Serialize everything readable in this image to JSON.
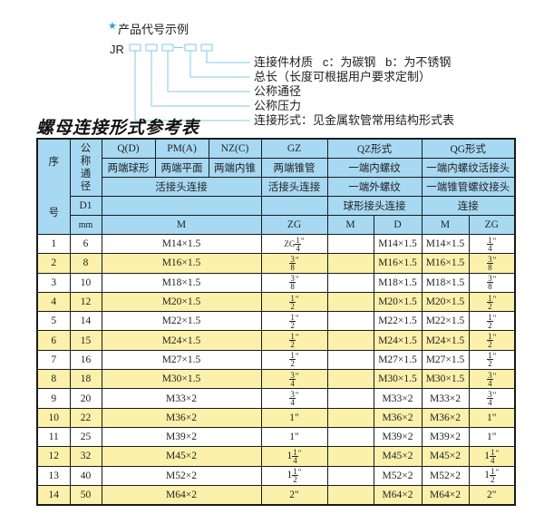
{
  "example": {
    "title": "产品代号示例",
    "code_prefix": "JR",
    "labels": [
      "连接件材质   c：为碳钢   b：为不锈钢",
      "总长（长度可根据用户要求定制）",
      "公称通径",
      "公称压力",
      "连接形式：见金属软管常用结构形式表"
    ],
    "accent_color": "#2a9fd6"
  },
  "table_title": "螺母连接形式参考表",
  "header": {
    "seq_top": "序",
    "seq_bottom": "号",
    "dn": "公称通径",
    "d1": "D1",
    "mm": "mm",
    "qd": "Q(D)",
    "pma": "PM(A)",
    "nzc": "NZ(C)",
    "gz": "GZ",
    "qz": "QZ形式",
    "qg": "QG形式",
    "qd_desc": "两端球形",
    "pma_desc": "两端平面",
    "nzc_desc": "两端内锥",
    "gz_desc": "两端锥管",
    "qz_desc1": "一端内螺纹",
    "qg_desc1": "一端内螺纹活接头",
    "conn1": "活接头连接",
    "gz_conn": "活接头连接",
    "qz_desc2": "一端外螺纹",
    "qg_desc2": "一端锥管螺纹接头",
    "qz_desc3": "球形接头连接",
    "qg_desc3": "连接",
    "m1": "M",
    "zg1": "ZG",
    "m2": "M",
    "d": "D",
    "m3": "M",
    "zg2": "ZG"
  },
  "rows": [
    {
      "no": "1",
      "dn": "6",
      "m": "M14×1.5",
      "zg": {
        "pre": "ZG",
        "whole": "",
        "num": "1",
        "den": "4",
        "mark": "\""
      },
      "qz_m": "",
      "qz_d": "M14×1.5",
      "qg_m": "M14×1.5",
      "qg_zg": {
        "pre": "",
        "whole": "",
        "num": "1",
        "den": "4",
        "mark": "\""
      }
    },
    {
      "no": "2",
      "dn": "8",
      "m": "M16×1.5",
      "zg": {
        "pre": "",
        "whole": "",
        "num": "3",
        "den": "8",
        "mark": "\""
      },
      "qz_m": "",
      "qz_d": "M16×1.5",
      "qg_m": "M16×1.5",
      "qg_zg": {
        "pre": "",
        "whole": "",
        "num": "3",
        "den": "8",
        "mark": "\""
      }
    },
    {
      "no": "3",
      "dn": "10",
      "m": "M18×1.5",
      "zg": {
        "pre": "",
        "whole": "",
        "num": "3",
        "den": "8",
        "mark": "\""
      },
      "qz_m": "",
      "qz_d": "M18×1.5",
      "qg_m": "M18×1.5",
      "qg_zg": {
        "pre": "",
        "whole": "",
        "num": "3",
        "den": "8",
        "mark": "\""
      }
    },
    {
      "no": "4",
      "dn": "12",
      "m": "M20×1.5",
      "zg": {
        "pre": "",
        "whole": "",
        "num": "1",
        "den": "2",
        "mark": "\""
      },
      "qz_m": "",
      "qz_d": "M20×1.5",
      "qg_m": "M20×1.5",
      "qg_zg": {
        "pre": "",
        "whole": "",
        "num": "1",
        "den": "2",
        "mark": "\""
      }
    },
    {
      "no": "5",
      "dn": "14",
      "m": "M22×1.5",
      "zg": {
        "pre": "",
        "whole": "",
        "num": "1",
        "den": "2",
        "mark": "\""
      },
      "qz_m": "",
      "qz_d": "M22×1.5",
      "qg_m": "M22×1.5",
      "qg_zg": {
        "pre": "",
        "whole": "",
        "num": "1",
        "den": "2",
        "mark": "\""
      }
    },
    {
      "no": "6",
      "dn": "15",
      "m": "M24×1.5",
      "zg": {
        "pre": "",
        "whole": "",
        "num": "1",
        "den": "2",
        "mark": "\""
      },
      "qz_m": "",
      "qz_d": "M24×1.5",
      "qg_m": "M24×1.5",
      "qg_zg": {
        "pre": "",
        "whole": "",
        "num": "1",
        "den": "2",
        "mark": "\""
      }
    },
    {
      "no": "7",
      "dn": "16",
      "m": "M27×1.5",
      "zg": {
        "pre": "",
        "whole": "",
        "num": "1",
        "den": "2",
        "mark": "\""
      },
      "qz_m": "",
      "qz_d": "M27×1.5",
      "qg_m": "M27×1.5",
      "qg_zg": {
        "pre": "",
        "whole": "",
        "num": "1",
        "den": "2",
        "mark": "\""
      }
    },
    {
      "no": "8",
      "dn": "18",
      "m": "M30×1.5",
      "zg": {
        "pre": "",
        "whole": "",
        "num": "3",
        "den": "4",
        "mark": "\""
      },
      "qz_m": "",
      "qz_d": "M30×1.5",
      "qg_m": "M30×1.5",
      "qg_zg": {
        "pre": "",
        "whole": "",
        "num": "3",
        "den": "4",
        "mark": "\""
      }
    },
    {
      "no": "9",
      "dn": "20",
      "m": "M33×2",
      "zg": {
        "pre": "",
        "whole": "",
        "num": "3",
        "den": "4",
        "mark": "\""
      },
      "qz_m": "",
      "qz_d": "M33×2",
      "qg_m": "M33×2",
      "qg_zg": {
        "pre": "",
        "whole": "",
        "num": "3",
        "den": "4",
        "mark": "\""
      }
    },
    {
      "no": "10",
      "dn": "22",
      "m": "M36×2",
      "zg": {
        "pre": "",
        "whole": "1\"",
        "num": "",
        "den": "",
        "mark": ""
      },
      "qz_m": "",
      "qz_d": "M36×2",
      "qg_m": "M36×2",
      "qg_zg": {
        "pre": "",
        "whole": "1\"",
        "num": "",
        "den": "",
        "mark": ""
      }
    },
    {
      "no": "11",
      "dn": "25",
      "m": "M39×2",
      "zg": {
        "pre": "",
        "whole": "1\"",
        "num": "",
        "den": "",
        "mark": ""
      },
      "qz_m": "",
      "qz_d": "M39×2",
      "qg_m": "M39×2",
      "qg_zg": {
        "pre": "",
        "whole": "1\"",
        "num": "",
        "den": "",
        "mark": ""
      }
    },
    {
      "no": "12",
      "dn": "32",
      "m": "M45×2",
      "zg": {
        "pre": "",
        "whole": "1",
        "num": "1",
        "den": "4",
        "mark": "\""
      },
      "qz_m": "",
      "qz_d": "M45×2",
      "qg_m": "M45×2",
      "qg_zg": {
        "pre": "",
        "whole": "1",
        "num": "1",
        "den": "4",
        "mark": "\""
      }
    },
    {
      "no": "13",
      "dn": "40",
      "m": "M52×2",
      "zg": {
        "pre": "",
        "whole": "1",
        "num": "1",
        "den": "2",
        "mark": "\""
      },
      "qz_m": "",
      "qz_d": "M52×2",
      "qg_m": "M52×2",
      "qg_zg": {
        "pre": "",
        "whole": "1",
        "num": "1",
        "den": "2",
        "mark": "\""
      }
    },
    {
      "no": "14",
      "dn": "50",
      "m": "M64×2",
      "zg": {
        "pre": "",
        "whole": "2\"",
        "num": "",
        "den": "",
        "mark": ""
      },
      "qz_m": "",
      "qz_d": "M64×2",
      "qg_m": "M64×2",
      "qg_zg": {
        "pre": "",
        "whole": "2\"",
        "num": "",
        "den": "",
        "mark": ""
      }
    }
  ],
  "colors": {
    "header_bg": "#a7d9f3",
    "even_row_bg": "#fbf1ab",
    "odd_row_bg": "#ffffff"
  }
}
